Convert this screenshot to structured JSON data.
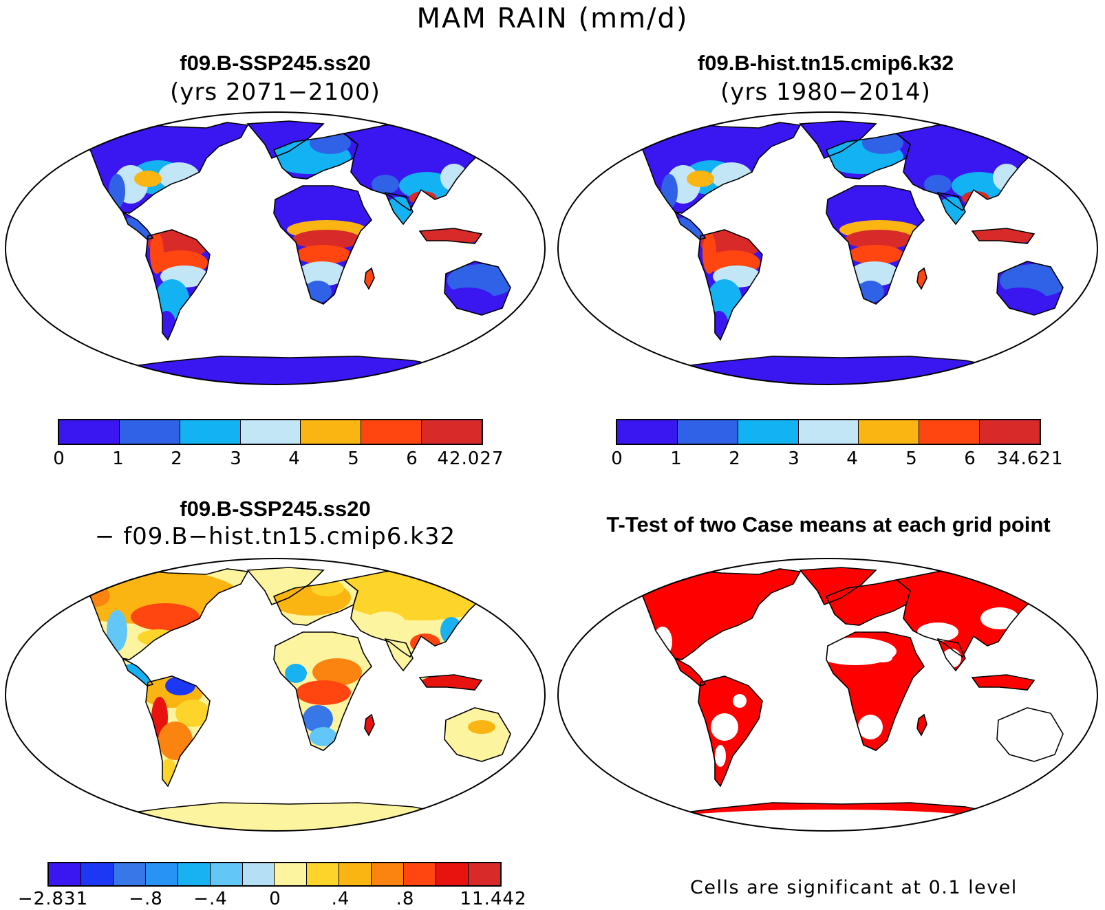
{
  "figure": {
    "title": "MAM RAIN (mm/d)"
  },
  "panels": {
    "top_left": {
      "case_name": "f09.B-SSP245.ss20",
      "years": "(yrs 2071−2100)",
      "colorbar": {
        "colors": [
          "#3a16f0",
          "#2f62e6",
          "#13b2f2",
          "#c3e6f7",
          "#fbb512",
          "#ff4611",
          "#d92a2a"
        ],
        "ticks": [
          "0",
          "1",
          "2",
          "3",
          "4",
          "5",
          "6",
          "42.027"
        ]
      }
    },
    "top_right": {
      "case_name": "f09.B-hist.tn15.cmip6.k32",
      "years": "(yrs 1980−2014)",
      "colorbar": {
        "colors": [
          "#3a16f0",
          "#2f62e6",
          "#13b2f2",
          "#c3e6f7",
          "#fbb512",
          "#ff4611",
          "#d92a2a"
        ],
        "ticks": [
          "0",
          "1",
          "2",
          "3",
          "4",
          "5",
          "6",
          "34.621"
        ]
      }
    },
    "bottom_left": {
      "case_name": "f09.B-SSP245.ss20",
      "difference_line": "− f09.B−hist.tn15.cmip6.k32",
      "colorbar": {
        "colors": [
          "#3a16f0",
          "#1c38f4",
          "#3877e8",
          "#2793f5",
          "#18b2f2",
          "#62c6f6",
          "#b5dff5",
          "#fdf4a0",
          "#fdd52a",
          "#fbb512",
          "#fb8410",
          "#ff4611",
          "#e8120f",
          "#d92a2a"
        ],
        "ticks": [
          "−2.831",
          "−.8",
          "−.4",
          "0",
          ".4",
          ".8",
          "11.442"
        ]
      }
    },
    "bottom_right": {
      "title": "T-Test of two Case means at each grid point",
      "note": "Cells are significant at 0.1 level",
      "signif_color": "#ff0000"
    }
  }
}
